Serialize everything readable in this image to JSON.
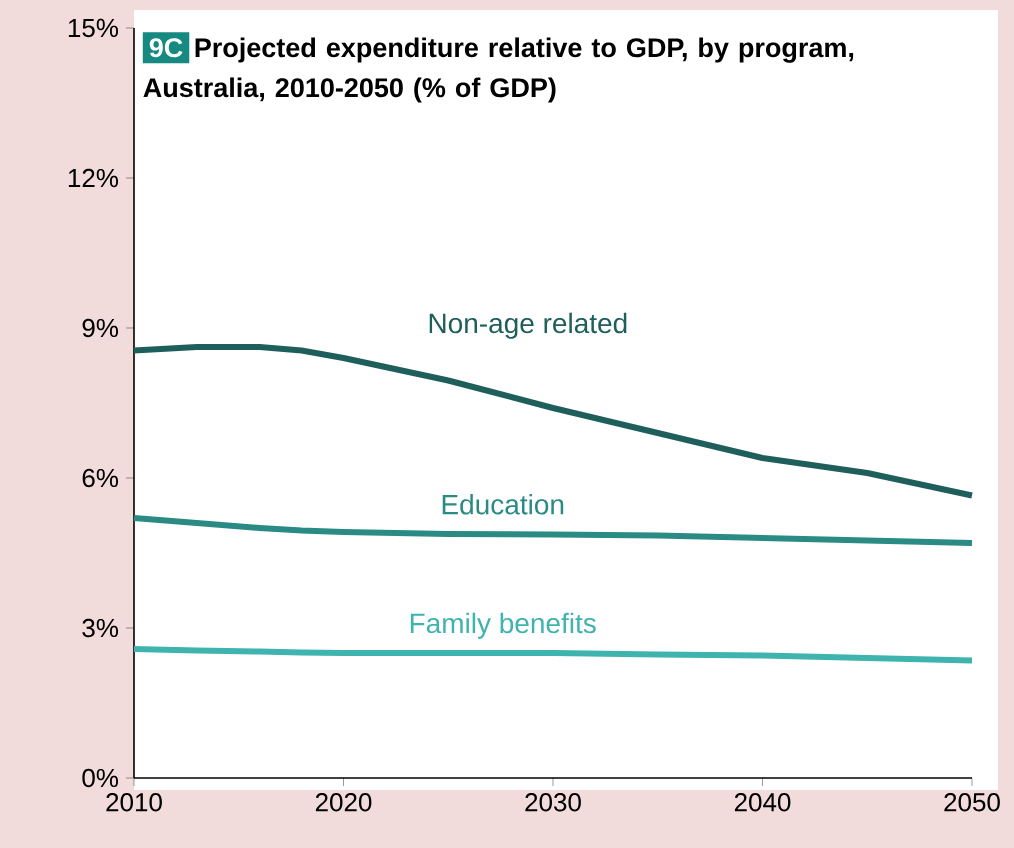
{
  "chart_data": {
    "type": "line",
    "title": "Projected expenditure relative to GDP, by program, Australia, 2010-2050 (% of GDP)",
    "annotations": [
      "9C"
    ],
    "x": [
      2010,
      2013,
      2016,
      2018,
      2020,
      2025,
      2030,
      2035,
      2040,
      2045,
      2050
    ],
    "series": [
      {
        "name": "Non-age related",
        "color": "#1f5f5b",
        "values": [
          8.55,
          8.62,
          8.62,
          8.55,
          8.4,
          7.95,
          7.4,
          6.9,
          6.4,
          6.1,
          5.65
        ]
      },
      {
        "name": "Education",
        "color": "#2a8a84",
        "values": [
          5.2,
          5.1,
          5.0,
          4.95,
          4.92,
          4.88,
          4.87,
          4.85,
          4.8,
          4.75,
          4.7
        ]
      },
      {
        "name": "Family benefits",
        "color": "#3fb3ad",
        "values": [
          2.58,
          2.55,
          2.53,
          2.51,
          2.5,
          2.5,
          2.5,
          2.47,
          2.45,
          2.4,
          2.35
        ]
      }
    ],
    "xlim": [
      2010,
      2050
    ],
    "ylim": [
      0,
      15
    ],
    "xticks": [
      2010,
      2020,
      2030,
      2040,
      2050
    ],
    "yticks": [
      {
        "value": 0,
        "label": "0%"
      },
      {
        "value": 3,
        "label": "3%"
      },
      {
        "value": 6,
        "label": "6%"
      },
      {
        "value": 9,
        "label": "9%"
      },
      {
        "value": 12,
        "label": "12%"
      },
      {
        "value": 15,
        "label": "15%"
      }
    ],
    "grid": false,
    "legend": false,
    "marker": "none",
    "line_style": "solid"
  }
}
